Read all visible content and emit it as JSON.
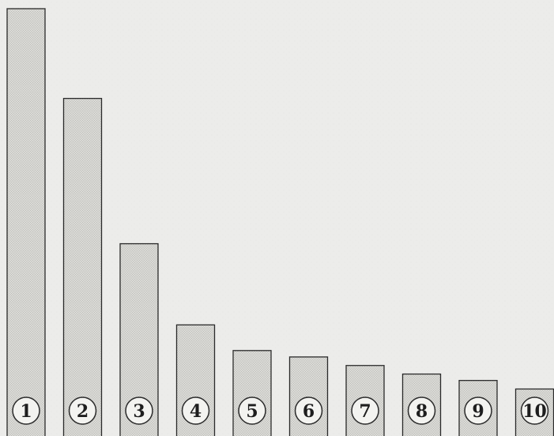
{
  "chart_data": {
    "type": "bar",
    "categories": [
      "1",
      "2",
      "3",
      "4",
      "5",
      "6",
      "7",
      "8",
      "9",
      "10"
    ],
    "values": [
      100,
      79,
      45,
      26,
      20,
      18.5,
      16.5,
      14.5,
      13,
      11
    ],
    "ylim": [
      0,
      100
    ],
    "grid": false,
    "legend": "none",
    "colors": {
      "bar_fill": "#d7d7d3",
      "bar_stroke": "#2a2a2a",
      "paper": "#ececea"
    }
  }
}
